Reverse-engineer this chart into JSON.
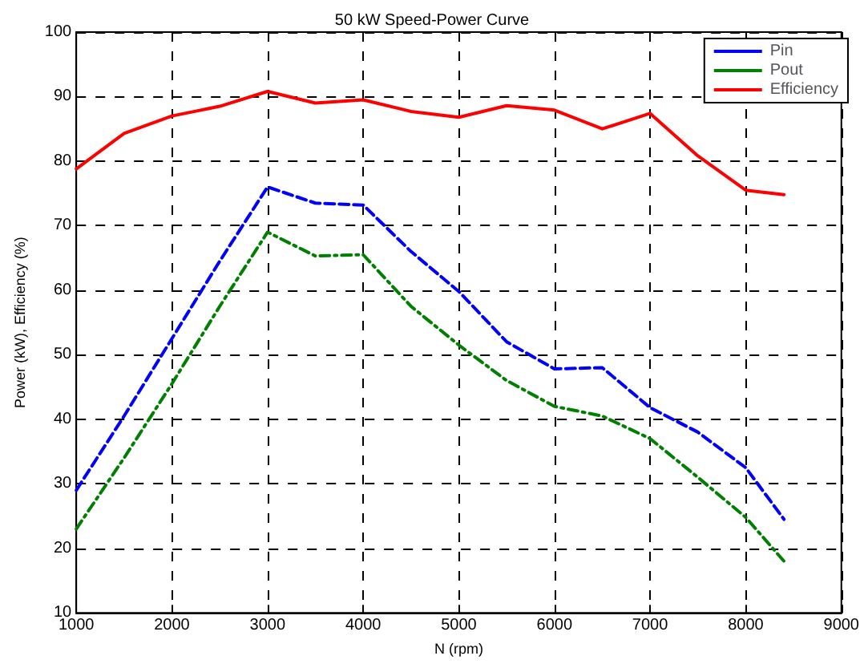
{
  "chart_data": {
    "type": "line",
    "title": "50 kW Speed-Power Curve",
    "xlabel": "N (rpm)",
    "ylabel": "Power (kW), Efficiency (%)",
    "x": [
      1000,
      1500,
      2000,
      2500,
      3000,
      3500,
      4000,
      4500,
      5000,
      5500,
      6000,
      6500,
      7000,
      7500,
      8000,
      8400
    ],
    "series": [
      {
        "name": "Pin",
        "color": "#0000ff",
        "line_style": "dashed",
        "values": [
          29,
          40.5,
          52.5,
          64.5,
          76,
          73.5,
          73.2,
          66,
          59.8,
          52,
          47.8,
          48,
          41.8,
          38,
          32.5,
          24.5
        ]
      },
      {
        "name": "Pout",
        "color": "#008000",
        "line_style": "dotted",
        "values": [
          23,
          34,
          45.5,
          57.5,
          69,
          65.3,
          65.5,
          57.5,
          51.5,
          46,
          42,
          40.5,
          37,
          31,
          24.8,
          18
        ]
      },
      {
        "name": "Efficiency",
        "color": "#ff0000",
        "line_style": "solid",
        "values": [
          78.8,
          84.3,
          87,
          88.5,
          90.8,
          89,
          89.5,
          87.7,
          86.8,
          88.6,
          87.9,
          85,
          87.4,
          80.8,
          75.5,
          74.8
        ]
      }
    ],
    "xlim": [
      1000,
      9000
    ],
    "xticks": [
      1000,
      2000,
      3000,
      4000,
      5000,
      6000,
      7000,
      8000,
      9000
    ],
    "ylim": [
      10,
      100
    ],
    "yticks": [
      10,
      20,
      30,
      40,
      50,
      60,
      70,
      80,
      90,
      100
    ],
    "grid": true,
    "legend": "top right",
    "marker": "none"
  }
}
